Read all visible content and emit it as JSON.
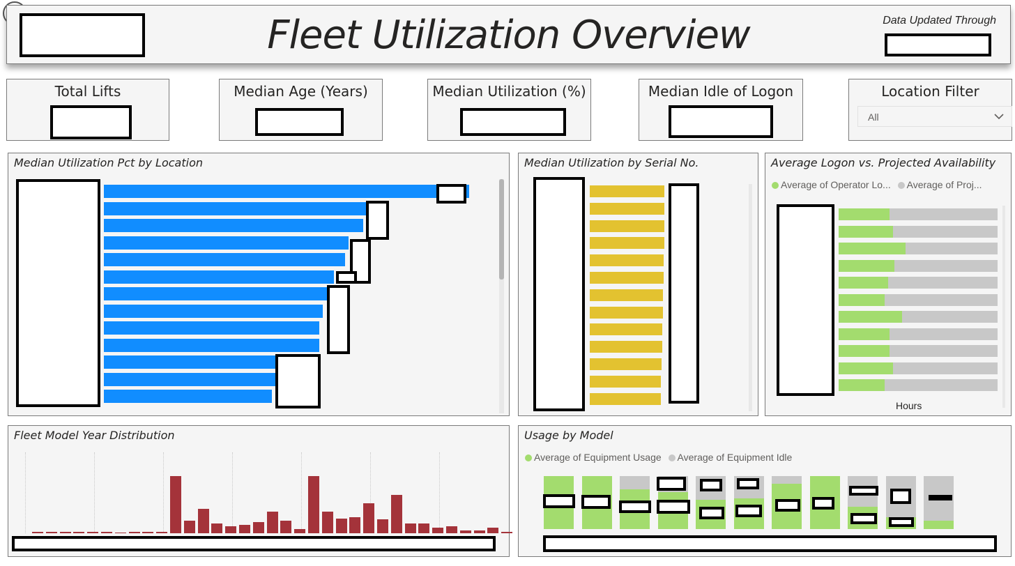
{
  "header": {
    "title": "Fleet Utilization Overview",
    "updated_label": "Data Updated Through"
  },
  "kpis": [
    {
      "label": "Total Lifts"
    },
    {
      "label": "Median Age (Years)"
    },
    {
      "label": "Median Utilization (%)"
    },
    {
      "label": "Median Idle of Logon"
    }
  ],
  "location_filter": {
    "label": "Location Filter",
    "selected": "All"
  },
  "util_by_location": {
    "title": "Median Utilization Pct by Location",
    "bar_color": "#118dff",
    "values_pct": [
      100,
      73,
      71,
      67,
      66,
      63,
      61,
      60,
      59,
      59,
      47,
      47,
      46
    ]
  },
  "util_by_serial": {
    "title": "Median Utilization by Serial No.",
    "bar_color": "#e3c230",
    "values_pct": [
      100,
      100,
      100,
      100,
      99,
      99,
      98,
      98,
      97,
      97,
      96,
      95,
      95
    ]
  },
  "logon_vs_availability": {
    "title": "Average Logon vs. Projected Availability",
    "legend": [
      "Average of Operator Lo...",
      "Average of Proj..."
    ],
    "colors": {
      "logon": "#a3dc6e",
      "availability": "#c8c8c8"
    },
    "logon_fraction": [
      0.32,
      0.34,
      0.42,
      0.35,
      0.31,
      0.29,
      0.4,
      0.32,
      0.32,
      0.34,
      0.29
    ],
    "xlabel": "Hours"
  },
  "model_year_distribution": {
    "title": "Fleet Model Year Distribution",
    "bar_color": "#a4333a",
    "values": [
      1,
      1,
      1,
      1,
      1,
      1,
      0,
      1,
      1,
      1,
      42,
      9,
      18,
      7,
      5,
      6,
      8,
      16,
      9,
      3,
      42,
      16,
      11,
      12,
      22,
      10,
      28,
      7,
      7,
      4,
      5,
      2,
      2,
      4,
      1
    ]
  },
  "usage_by_model": {
    "title": "Usage by Model",
    "legend": [
      "Average of Equipment Usage",
      "Average of Equipment Idle"
    ],
    "colors": {
      "usage": "#a3dc6e",
      "idle": "#c8c8c8"
    },
    "usage_fraction": [
      1.0,
      1.0,
      0.75,
      0.7,
      0.55,
      0.58,
      0.85,
      1.0,
      0.42,
      0.22,
      0.16
    ]
  }
}
